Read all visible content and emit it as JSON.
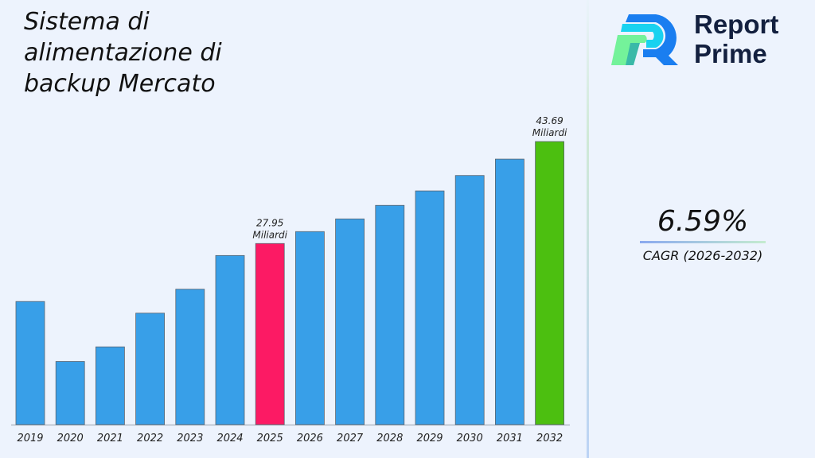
{
  "title": "Sistema di alimentazione di backup Mercato",
  "brand": {
    "line1": "Report",
    "line2": "Prime"
  },
  "cagr": {
    "value": "6.59%",
    "label": "CAGR (2026-2032)"
  },
  "chart_data": {
    "type": "bar",
    "title": "Sistema di alimentazione di backup Mercato",
    "categories": [
      "2019",
      "2020",
      "2021",
      "2022",
      "2023",
      "2024",
      "2025",
      "2026",
      "2027",
      "2028",
      "2029",
      "2030",
      "2031",
      "2032"
    ],
    "values": [
      19.0,
      9.75,
      12.0,
      17.2,
      20.9,
      26.1,
      27.95,
      29.79,
      31.75,
      33.84,
      36.07,
      38.45,
      40.98,
      43.69
    ],
    "colors": {
      "default": "#389fe8",
      "2025": "#fc1a64",
      "2032": "#4cbf10"
    },
    "annotations": [
      {
        "category": "2025",
        "value": "27.95",
        "unit": "Miliardi"
      },
      {
        "category": "2032",
        "value": "43.69",
        "unit": "Miliardi"
      }
    ],
    "ylim": [
      0,
      45
    ],
    "grid": false,
    "xlabel": "",
    "ylabel": ""
  }
}
